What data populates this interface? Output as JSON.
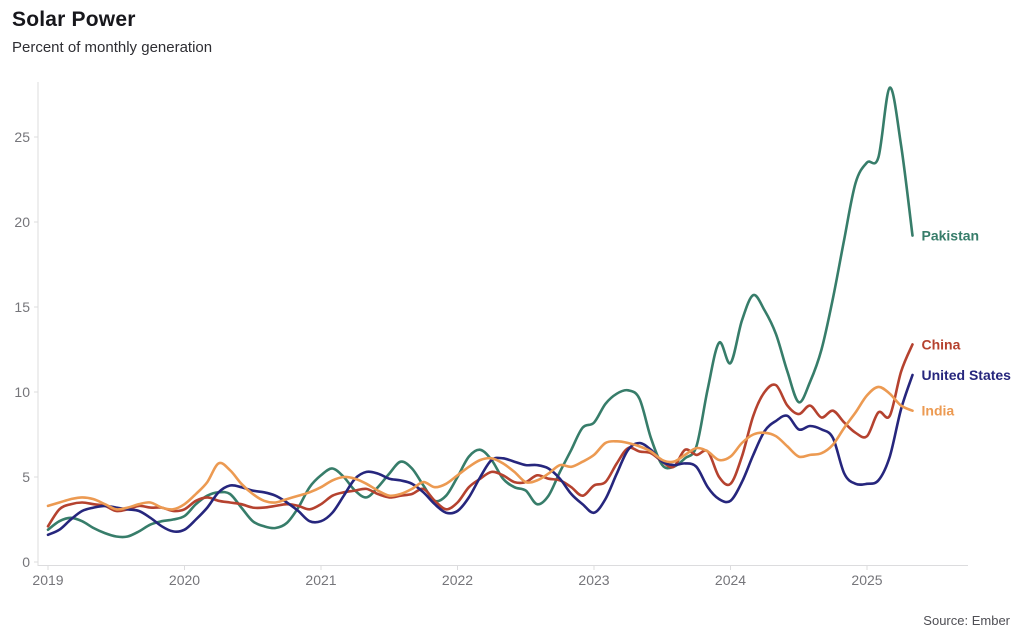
{
  "header": {
    "title": "Solar Power",
    "subtitle": "Percent of monthly generation"
  },
  "footer": {
    "source": "Source: Ember"
  },
  "colors": {
    "pakistan": "#377d6a",
    "china": "#b5422f",
    "united_states": "#26267d",
    "india": "#ec9a52",
    "axis": "#dcdcde",
    "tick_text": "#75757a"
  },
  "chart_data": {
    "type": "line",
    "title": "Solar Power",
    "subtitle": "Percent of monthly generation",
    "x_start": "2019-01",
    "x_end": "2025-05",
    "x_tick_labels": [
      "2019",
      "2020",
      "2021",
      "2022",
      "2023",
      "2024",
      "2025"
    ],
    "y_ticks": [
      0,
      5,
      10,
      15,
      20,
      25
    ],
    "ylim": [
      0,
      29
    ],
    "grid": false,
    "legend_position": "line-end-labels",
    "series": [
      {
        "name": "Pakistan",
        "color": "#377d6a",
        "values": [
          1.9,
          2.4,
          2.6,
          2.4,
          2.0,
          1.7,
          1.5,
          1.5,
          1.8,
          2.2,
          2.4,
          2.5,
          2.7,
          3.4,
          3.9,
          4.1,
          4.0,
          3.2,
          2.4,
          2.1,
          2.0,
          2.3,
          3.2,
          4.4,
          5.1,
          5.5,
          5.0,
          4.2,
          3.8,
          4.4,
          5.2,
          5.9,
          5.5,
          4.5,
          3.6,
          3.9,
          5.0,
          6.2,
          6.6,
          6.0,
          4.9,
          4.4,
          4.2,
          3.4,
          3.9,
          5.3,
          6.6,
          7.9,
          8.2,
          9.3,
          9.9,
          10.1,
          9.6,
          7.3,
          5.7,
          5.6,
          6.1,
          6.8,
          10.2,
          12.9,
          11.7,
          14.2,
          15.7,
          14.8,
          13.4,
          11.2,
          9.4,
          10.6,
          12.5,
          15.5,
          19.0,
          22.3,
          23.5,
          23.8,
          27.9,
          24.5,
          19.2
        ]
      },
      {
        "name": "China",
        "color": "#b5422f",
        "values": [
          2.1,
          3.1,
          3.4,
          3.5,
          3.4,
          3.3,
          3.0,
          3.1,
          3.3,
          3.2,
          3.2,
          3.0,
          3.1,
          3.6,
          3.8,
          3.6,
          3.5,
          3.4,
          3.2,
          3.2,
          3.3,
          3.4,
          3.3,
          3.1,
          3.4,
          3.9,
          4.1,
          4.2,
          4.3,
          4.0,
          3.8,
          3.9,
          4.0,
          4.3,
          3.6,
          3.1,
          3.5,
          4.4,
          4.9,
          5.3,
          5.1,
          4.7,
          4.7,
          5.1,
          4.9,
          4.8,
          4.4,
          3.9,
          4.5,
          4.7,
          5.8,
          6.7,
          6.5,
          6.4,
          5.9,
          5.6,
          6.6,
          6.3,
          6.5,
          5.0,
          4.6,
          6.2,
          8.6,
          10.0,
          10.4,
          9.2,
          8.7,
          9.2,
          8.5,
          8.9,
          8.2,
          7.6,
          7.4,
          8.8,
          8.6,
          11.2,
          12.8
        ]
      },
      {
        "name": "United States",
        "color": "#26267d",
        "values": [
          1.6,
          1.9,
          2.5,
          3.0,
          3.2,
          3.3,
          3.2,
          3.1,
          3.0,
          2.6,
          2.1,
          1.8,
          1.9,
          2.5,
          3.2,
          4.1,
          4.5,
          4.4,
          4.2,
          4.1,
          3.9,
          3.5,
          3.0,
          2.4,
          2.4,
          2.9,
          3.9,
          4.9,
          5.3,
          5.2,
          4.9,
          4.8,
          4.6,
          4.1,
          3.4,
          2.9,
          3.0,
          3.8,
          5.0,
          6.0,
          6.1,
          5.9,
          5.7,
          5.7,
          5.5,
          4.9,
          4.0,
          3.4,
          2.9,
          3.7,
          5.2,
          6.6,
          7.0,
          6.6,
          5.9,
          5.7,
          5.8,
          5.6,
          4.4,
          3.7,
          3.6,
          4.7,
          6.3,
          7.7,
          8.3,
          8.6,
          7.8,
          8.0,
          7.8,
          7.3,
          5.2,
          4.6,
          4.6,
          4.8,
          6.2,
          9.0,
          11.0
        ]
      },
      {
        "name": "India",
        "color": "#ec9a52",
        "values": [
          3.3,
          3.5,
          3.7,
          3.8,
          3.7,
          3.4,
          3.1,
          3.2,
          3.4,
          3.5,
          3.2,
          3.1,
          3.4,
          4.0,
          4.7,
          5.8,
          5.4,
          4.6,
          4.0,
          3.6,
          3.5,
          3.7,
          3.9,
          4.1,
          4.4,
          4.8,
          5.0,
          4.9,
          4.6,
          4.2,
          3.9,
          4.0,
          4.3,
          4.7,
          4.4,
          4.6,
          5.1,
          5.6,
          6.0,
          6.1,
          5.8,
          5.3,
          4.7,
          4.8,
          5.2,
          5.7,
          5.6,
          5.9,
          6.3,
          7.0,
          7.1,
          7.0,
          6.8,
          6.5,
          6.0,
          5.9,
          6.3,
          6.7,
          6.5,
          6.0,
          6.2,
          7.0,
          7.5,
          7.6,
          7.4,
          6.8,
          6.2,
          6.3,
          6.4,
          6.9,
          7.9,
          8.8,
          9.8,
          10.3,
          9.9,
          9.2,
          8.9
        ]
      }
    ]
  }
}
